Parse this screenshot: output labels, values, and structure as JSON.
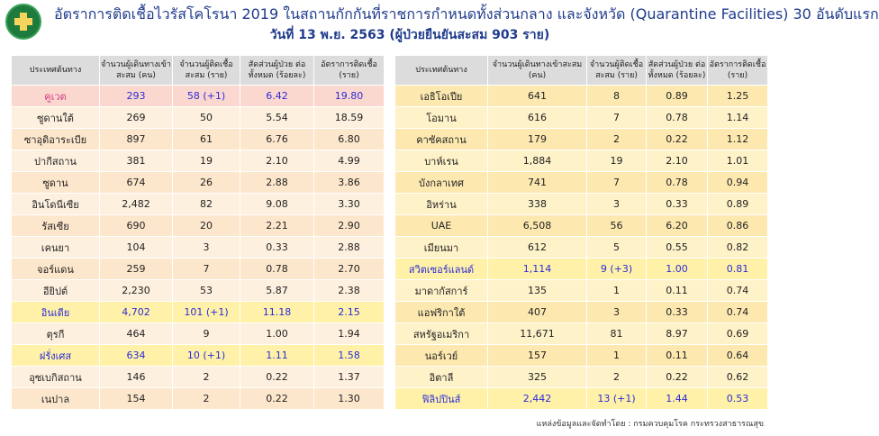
{
  "header": {
    "title": "อัตราการติดเชื้อไวรัสโคโรนา 2019 ในสถานกักกันที่ราชการกำหนดทั้งส่วนกลาง และจังหวัด (Quarantine Facilities) 30 อันดับแรก",
    "subtitle": "วันที่ 13 พ.ย. 2563  (ผู้ป่วยยืนยันสะสม 903 ราย)"
  },
  "columns": {
    "country": "ประเทศต้นทาง",
    "travelers": "จำนวนผู้เดินทางเข้าสะสม (คน)",
    "infected": "จำนวนผู้ติดเชื้อ สะสม (ราย)",
    "share": "สัดส่วนผู้ป่วย ต่อทั้งหมด (ร้อยละ)",
    "rate": "อัตราการติดเชื้อ (ราย)"
  },
  "left_rows": [
    {
      "country": "คูเวต",
      "travelers": "293",
      "infected": "58 (+1)",
      "share": "6.42",
      "rate": "19.80",
      "style": "pink"
    },
    {
      "country": "ซูดานใต้",
      "travelers": "269",
      "infected": "50",
      "share": "5.54",
      "rate": "18.59",
      "style": ""
    },
    {
      "country": "ซาอุดิอาระเบีย",
      "travelers": "897",
      "infected": "61",
      "share": "6.76",
      "rate": "6.80",
      "style": ""
    },
    {
      "country": "ปากีสถาน",
      "travelers": "381",
      "infected": "19",
      "share": "2.10",
      "rate": "4.99",
      "style": ""
    },
    {
      "country": "ซูดาน",
      "travelers": "674",
      "infected": "26",
      "share": "2.88",
      "rate": "3.86",
      "style": ""
    },
    {
      "country": "อินโดนีเซีย",
      "travelers": "2,482",
      "infected": "82",
      "share": "9.08",
      "rate": "3.30",
      "style": ""
    },
    {
      "country": "รัสเซีย",
      "travelers": "690",
      "infected": "20",
      "share": "2.21",
      "rate": "2.90",
      "style": ""
    },
    {
      "country": "เคนยา",
      "travelers": "104",
      "infected": "3",
      "share": "0.33",
      "rate": "2.88",
      "style": ""
    },
    {
      "country": "จอร์แดน",
      "travelers": "259",
      "infected": "7",
      "share": "0.78",
      "rate": "2.70",
      "style": ""
    },
    {
      "country": "อียิปต์",
      "travelers": "2,230",
      "infected": "53",
      "share": "5.87",
      "rate": "2.38",
      "style": ""
    },
    {
      "country": "อินเดีย",
      "travelers": "4,702",
      "infected": "101 (+1)",
      "share": "11.18",
      "rate": "2.15",
      "style": "hl"
    },
    {
      "country": "ตุรกี",
      "travelers": "464",
      "infected": "9",
      "share": "1.00",
      "rate": "1.94",
      "style": ""
    },
    {
      "country": "ฝรั่งเศส",
      "travelers": "634",
      "infected": "10 (+1)",
      "share": "1.11",
      "rate": "1.58",
      "style": "hl"
    },
    {
      "country": "อุซเบกิสถาน",
      "travelers": "146",
      "infected": "2",
      "share": "0.22",
      "rate": "1.37",
      "style": ""
    },
    {
      "country": "เนปาล",
      "travelers": "154",
      "infected": "2",
      "share": "0.22",
      "rate": "1.30",
      "style": ""
    }
  ],
  "right_rows": [
    {
      "country": "เอธิโอเปีย",
      "travelers": "641",
      "infected": "8",
      "share": "0.89",
      "rate": "1.25",
      "style": ""
    },
    {
      "country": "โอมาน",
      "travelers": "616",
      "infected": "7",
      "share": "0.78",
      "rate": "1.14",
      "style": ""
    },
    {
      "country": "คาซัคสถาน",
      "travelers": "179",
      "infected": "2",
      "share": "0.22",
      "rate": "1.12",
      "style": ""
    },
    {
      "country": "บาห์เรน",
      "travelers": "1,884",
      "infected": "19",
      "share": "2.10",
      "rate": "1.01",
      "style": ""
    },
    {
      "country": "บังกลาเทศ",
      "travelers": "741",
      "infected": "7",
      "share": "0.78",
      "rate": "0.94",
      "style": ""
    },
    {
      "country": "อิหร่าน",
      "travelers": "338",
      "infected": "3",
      "share": "0.33",
      "rate": "0.89",
      "style": ""
    },
    {
      "country": "UAE",
      "travelers": "6,508",
      "infected": "56",
      "share": "6.20",
      "rate": "0.86",
      "style": ""
    },
    {
      "country": "เมียนมา",
      "travelers": "612",
      "infected": "5",
      "share": "0.55",
      "rate": "0.82",
      "style": ""
    },
    {
      "country": "สวิตเซอร์แลนด์",
      "travelers": "1,114",
      "infected": "9 (+3)",
      "share": "1.00",
      "rate": "0.81",
      "style": "hl"
    },
    {
      "country": "มาดากัสการ์",
      "travelers": "135",
      "infected": "1",
      "share": "0.11",
      "rate": "0.74",
      "style": ""
    },
    {
      "country": "แอฟริกาใต้",
      "travelers": "407",
      "infected": "3",
      "share": "0.33",
      "rate": "0.74",
      "style": ""
    },
    {
      "country": "สหรัฐอเมริกา",
      "travelers": "11,671",
      "infected": "81",
      "share": "8.97",
      "rate": "0.69",
      "style": ""
    },
    {
      "country": "นอร์เวย์",
      "travelers": "157",
      "infected": "1",
      "share": "0.11",
      "rate": "0.64",
      "style": ""
    },
    {
      "country": "อิตาลี",
      "travelers": "325",
      "infected": "2",
      "share": "0.22",
      "rate": "0.62",
      "style": ""
    },
    {
      "country": "ฟิลิปปินส์",
      "travelers": "2,442",
      "infected": "13 (+1)",
      "share": "1.44",
      "rate": "0.53",
      "style": "hl"
    }
  ],
  "footer": {
    "source": "แหล่งข้อมูลและจัดทำโดย : กรมควบคุมโรค กระทรวงสาธารณสุข"
  },
  "colors": {
    "title": "#1f3b8c",
    "highlight_row": "#fff2a8",
    "highlight_text": "#2b2bd9",
    "top_row": "#fbd8cf",
    "logo": "#1f7a3d"
  }
}
